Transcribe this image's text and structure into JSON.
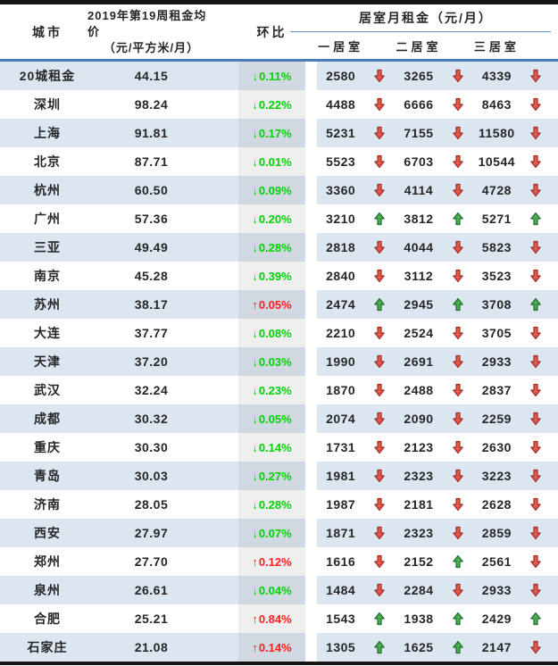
{
  "colors": {
    "row_stripe": "#dce6f1",
    "header_rule_blue": "#4a7ebb",
    "thin_rule_blue": "#6b93c0",
    "wow_down_green": "#00d300",
    "wow_up_red": "#ff1e1e",
    "arrow_down_red": "#e6574d",
    "arrow_down_stroke": "#9c2f27",
    "arrow_up_green": "#4cab52",
    "arrow_up_stroke": "#20702a",
    "border_black": "#141414",
    "text_dark": "#262626"
  },
  "chart_data": {
    "type": "table",
    "header": {
      "city": "城市",
      "avg_price_line1": "2019年第19周租金均价",
      "avg_price_line2": "（元/平方米/月）",
      "wow": "环比",
      "rent_group": "居室月租金（元/月）",
      "bedroom_cols": [
        "一居室",
        "二居室",
        "三居室"
      ]
    },
    "rows": [
      {
        "city": "20城租金",
        "avg_price": "44.15",
        "wow": "0.11%",
        "wow_dir": "down",
        "is_total": true,
        "bedrooms": [
          {
            "value": "2580",
            "dir": "down"
          },
          {
            "value": "3265",
            "dir": "down"
          },
          {
            "value": "4339",
            "dir": "down"
          }
        ]
      },
      {
        "city": "深圳",
        "avg_price": "98.24",
        "wow": "0.22%",
        "wow_dir": "down",
        "is_total": false,
        "bedrooms": [
          {
            "value": "4488",
            "dir": "down"
          },
          {
            "value": "6666",
            "dir": "down"
          },
          {
            "value": "8463",
            "dir": "down"
          }
        ]
      },
      {
        "city": "上海",
        "avg_price": "91.81",
        "wow": "0.17%",
        "wow_dir": "down",
        "is_total": false,
        "bedrooms": [
          {
            "value": "5231",
            "dir": "down"
          },
          {
            "value": "7155",
            "dir": "down"
          },
          {
            "value": "11580",
            "dir": "down"
          }
        ]
      },
      {
        "city": "北京",
        "avg_price": "87.71",
        "wow": "0.01%",
        "wow_dir": "down",
        "is_total": false,
        "bedrooms": [
          {
            "value": "5523",
            "dir": "down"
          },
          {
            "value": "6703",
            "dir": "down"
          },
          {
            "value": "10544",
            "dir": "down"
          }
        ]
      },
      {
        "city": "杭州",
        "avg_price": "60.50",
        "wow": "0.09%",
        "wow_dir": "down",
        "is_total": false,
        "bedrooms": [
          {
            "value": "3360",
            "dir": "down"
          },
          {
            "value": "4114",
            "dir": "down"
          },
          {
            "value": "4728",
            "dir": "down"
          }
        ]
      },
      {
        "city": "广州",
        "avg_price": "57.36",
        "wow": "0.20%",
        "wow_dir": "down",
        "is_total": false,
        "bedrooms": [
          {
            "value": "3210",
            "dir": "up"
          },
          {
            "value": "3812",
            "dir": "up"
          },
          {
            "value": "5271",
            "dir": "up"
          }
        ]
      },
      {
        "city": "三亚",
        "avg_price": "49.49",
        "wow": "0.28%",
        "wow_dir": "down",
        "is_total": false,
        "bedrooms": [
          {
            "value": "2818",
            "dir": "down"
          },
          {
            "value": "4044",
            "dir": "down"
          },
          {
            "value": "5823",
            "dir": "down"
          }
        ]
      },
      {
        "city": "南京",
        "avg_price": "45.28",
        "wow": "0.39%",
        "wow_dir": "down",
        "is_total": false,
        "bedrooms": [
          {
            "value": "2840",
            "dir": "down"
          },
          {
            "value": "3112",
            "dir": "down"
          },
          {
            "value": "3523",
            "dir": "down"
          }
        ]
      },
      {
        "city": "苏州",
        "avg_price": "38.17",
        "wow": "0.05%",
        "wow_dir": "up",
        "is_total": false,
        "bedrooms": [
          {
            "value": "2474",
            "dir": "up"
          },
          {
            "value": "2945",
            "dir": "up"
          },
          {
            "value": "3708",
            "dir": "up"
          }
        ]
      },
      {
        "city": "大连",
        "avg_price": "37.77",
        "wow": "0.08%",
        "wow_dir": "down",
        "is_total": false,
        "bedrooms": [
          {
            "value": "2210",
            "dir": "down"
          },
          {
            "value": "2524",
            "dir": "down"
          },
          {
            "value": "3705",
            "dir": "down"
          }
        ]
      },
      {
        "city": "天津",
        "avg_price": "37.20",
        "wow": "0.03%",
        "wow_dir": "down",
        "is_total": false,
        "bedrooms": [
          {
            "value": "1990",
            "dir": "down"
          },
          {
            "value": "2691",
            "dir": "down"
          },
          {
            "value": "2933",
            "dir": "down"
          }
        ]
      },
      {
        "city": "武汉",
        "avg_price": "32.24",
        "wow": "0.23%",
        "wow_dir": "down",
        "is_total": false,
        "bedrooms": [
          {
            "value": "1870",
            "dir": "down"
          },
          {
            "value": "2488",
            "dir": "down"
          },
          {
            "value": "2837",
            "dir": "down"
          }
        ]
      },
      {
        "city": "成都",
        "avg_price": "30.32",
        "wow": "0.05%",
        "wow_dir": "down",
        "is_total": false,
        "bedrooms": [
          {
            "value": "2074",
            "dir": "down"
          },
          {
            "value": "2090",
            "dir": "down"
          },
          {
            "value": "2259",
            "dir": "down"
          }
        ]
      },
      {
        "city": "重庆",
        "avg_price": "30.30",
        "wow": "0.14%",
        "wow_dir": "down",
        "is_total": false,
        "bedrooms": [
          {
            "value": "1731",
            "dir": "down"
          },
          {
            "value": "2123",
            "dir": "down"
          },
          {
            "value": "2630",
            "dir": "down"
          }
        ]
      },
      {
        "city": "青岛",
        "avg_price": "30.03",
        "wow": "0.27%",
        "wow_dir": "down",
        "is_total": false,
        "bedrooms": [
          {
            "value": "1981",
            "dir": "down"
          },
          {
            "value": "2323",
            "dir": "down"
          },
          {
            "value": "3223",
            "dir": "down"
          }
        ]
      },
      {
        "city": "济南",
        "avg_price": "28.05",
        "wow": "0.28%",
        "wow_dir": "down",
        "is_total": false,
        "bedrooms": [
          {
            "value": "1987",
            "dir": "down"
          },
          {
            "value": "2181",
            "dir": "down"
          },
          {
            "value": "2628",
            "dir": "down"
          }
        ]
      },
      {
        "city": "西安",
        "avg_price": "27.97",
        "wow": "0.07%",
        "wow_dir": "down",
        "is_total": false,
        "bedrooms": [
          {
            "value": "1871",
            "dir": "down"
          },
          {
            "value": "2323",
            "dir": "down"
          },
          {
            "value": "2859",
            "dir": "down"
          }
        ]
      },
      {
        "city": "郑州",
        "avg_price": "27.70",
        "wow": "0.12%",
        "wow_dir": "up",
        "is_total": false,
        "bedrooms": [
          {
            "value": "1616",
            "dir": "down"
          },
          {
            "value": "2152",
            "dir": "up"
          },
          {
            "value": "2561",
            "dir": "down"
          }
        ]
      },
      {
        "city": "泉州",
        "avg_price": "26.61",
        "wow": "0.04%",
        "wow_dir": "down",
        "is_total": false,
        "bedrooms": [
          {
            "value": "1484",
            "dir": "down"
          },
          {
            "value": "2284",
            "dir": "down"
          },
          {
            "value": "2933",
            "dir": "down"
          }
        ]
      },
      {
        "city": "合肥",
        "avg_price": "25.21",
        "wow": "0.84%",
        "wow_dir": "up",
        "is_total": false,
        "bedrooms": [
          {
            "value": "1543",
            "dir": "up"
          },
          {
            "value": "1938",
            "dir": "up"
          },
          {
            "value": "2429",
            "dir": "up"
          }
        ]
      },
      {
        "city": "石家庄",
        "avg_price": "21.08",
        "wow": "0.14%",
        "wow_dir": "up",
        "is_total": false,
        "bedrooms": [
          {
            "value": "1305",
            "dir": "up"
          },
          {
            "value": "1625",
            "dir": "up"
          },
          {
            "value": "2147",
            "dir": "down"
          }
        ]
      }
    ]
  }
}
